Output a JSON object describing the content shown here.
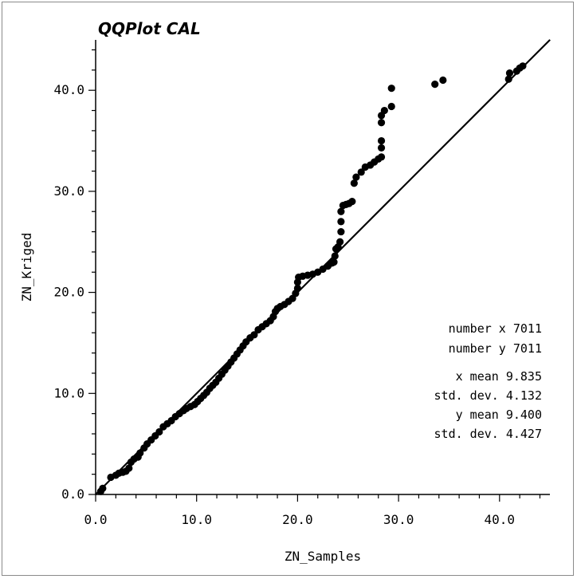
{
  "chart_data": {
    "type": "scatter",
    "title": "QQPlot CAL",
    "xlabel": "ZN_Samples",
    "ylabel": "ZN_Kriged",
    "xlim": [
      0,
      45
    ],
    "ylim": [
      0,
      45
    ],
    "x_ticks": [
      "0.0",
      "10.0",
      "20.0",
      "30.0",
      "40.0"
    ],
    "y_ticks": [
      "0.0",
      "10.0",
      "20.0",
      "30.0",
      "40.0"
    ],
    "reference_line": {
      "from": [
        0,
        0
      ],
      "to": [
        45,
        45
      ]
    },
    "points": [
      [
        0.5,
        0.3
      ],
      [
        0.7,
        0.6
      ],
      [
        1.5,
        1.7
      ],
      [
        2.0,
        1.9
      ],
      [
        2.3,
        2.1
      ],
      [
        2.7,
        2.2
      ],
      [
        3.0,
        2.3
      ],
      [
        3.3,
        2.6
      ],
      [
        3.5,
        3.2
      ],
      [
        3.8,
        3.5
      ],
      [
        4.2,
        3.7
      ],
      [
        4.4,
        4.1
      ],
      [
        4.8,
        4.6
      ],
      [
        5.1,
        5.0
      ],
      [
        5.5,
        5.4
      ],
      [
        5.9,
        5.8
      ],
      [
        6.3,
        6.2
      ],
      [
        6.7,
        6.7
      ],
      [
        7.1,
        7.0
      ],
      [
        7.5,
        7.3
      ],
      [
        7.9,
        7.7
      ],
      [
        8.3,
        8.0
      ],
      [
        8.7,
        8.3
      ],
      [
        9.0,
        8.5
      ],
      [
        9.4,
        8.7
      ],
      [
        9.8,
        8.9
      ],
      [
        10.1,
        9.2
      ],
      [
        10.4,
        9.5
      ],
      [
        10.7,
        9.8
      ],
      [
        11.0,
        10.1
      ],
      [
        11.3,
        10.5
      ],
      [
        11.6,
        10.8
      ],
      [
        11.9,
        11.1
      ],
      [
        12.2,
        11.5
      ],
      [
        12.5,
        11.9
      ],
      [
        12.8,
        12.3
      ],
      [
        13.1,
        12.7
      ],
      [
        13.4,
        13.1
      ],
      [
        13.7,
        13.5
      ],
      [
        14.0,
        13.9
      ],
      [
        14.3,
        14.3
      ],
      [
        14.6,
        14.7
      ],
      [
        14.9,
        15.1
      ],
      [
        15.3,
        15.5
      ],
      [
        15.7,
        15.8
      ],
      [
        16.1,
        16.3
      ],
      [
        16.5,
        16.6
      ],
      [
        16.9,
        16.9
      ],
      [
        17.3,
        17.2
      ],
      [
        17.6,
        17.6
      ],
      [
        17.8,
        18.1
      ],
      [
        18.0,
        18.4
      ],
      [
        18.3,
        18.6
      ],
      [
        18.7,
        18.8
      ],
      [
        19.1,
        19.1
      ],
      [
        19.5,
        19.4
      ],
      [
        19.8,
        19.9
      ],
      [
        20.0,
        20.4
      ],
      [
        20.0,
        21.0
      ],
      [
        20.1,
        21.5
      ],
      [
        20.5,
        21.6
      ],
      [
        21.0,
        21.7
      ],
      [
        21.5,
        21.8
      ],
      [
        22.0,
        22.0
      ],
      [
        22.5,
        22.3
      ],
      [
        23.0,
        22.6
      ],
      [
        23.4,
        22.9
      ],
      [
        23.6,
        23.0
      ],
      [
        23.7,
        23.6
      ],
      [
        23.8,
        24.3
      ],
      [
        24.0,
        24.5
      ],
      [
        24.2,
        25.0
      ],
      [
        24.3,
        26.0
      ],
      [
        24.3,
        27.0
      ],
      [
        24.3,
        28.0
      ],
      [
        24.5,
        28.6
      ],
      [
        24.8,
        28.7
      ],
      [
        25.1,
        28.8
      ],
      [
        25.4,
        29.0
      ],
      [
        25.6,
        30.8
      ],
      [
        25.8,
        31.4
      ],
      [
        26.3,
        31.9
      ],
      [
        26.7,
        32.4
      ],
      [
        27.2,
        32.6
      ],
      [
        27.6,
        32.9
      ],
      [
        28.0,
        33.2
      ],
      [
        28.3,
        33.4
      ],
      [
        28.3,
        34.3
      ],
      [
        28.3,
        35.0
      ],
      [
        28.3,
        36.8
      ],
      [
        28.3,
        37.5
      ],
      [
        28.6,
        38.0
      ],
      [
        29.3,
        38.4
      ],
      [
        29.3,
        40.2
      ],
      [
        33.6,
        40.6
      ],
      [
        34.4,
        41.0
      ],
      [
        40.9,
        41.1
      ],
      [
        41.0,
        41.7
      ],
      [
        41.7,
        41.9
      ],
      [
        42.0,
        42.2
      ],
      [
        42.3,
        42.4
      ]
    ],
    "stats": [
      {
        "label": "number x",
        "value": "7011"
      },
      {
        "label": "number y",
        "value": "7011"
      },
      {
        "label": "x mean",
        "value": "9.835"
      },
      {
        "label": "std. dev.",
        "value": "4.132"
      },
      {
        "label": "y mean",
        "value": "9.400"
      },
      {
        "label": "std. dev.",
        "value": "4.427"
      }
    ]
  }
}
